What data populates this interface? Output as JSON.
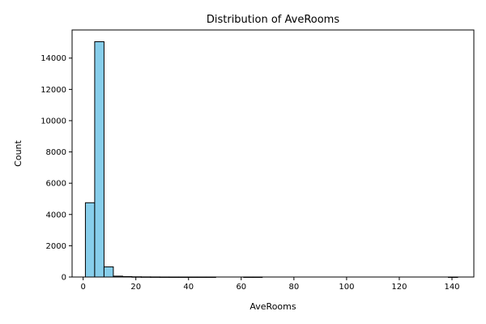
{
  "chart_data": {
    "type": "bar",
    "title": "Distribution of AveRooms",
    "xlabel": "AveRooms",
    "ylabel": "Count",
    "xlim": [
      -4.2,
      148.3
    ],
    "ylim": [
      0,
      15800
    ],
    "xticks": [
      0,
      20,
      40,
      60,
      80,
      100,
      120,
      140
    ],
    "yticks": [
      0,
      2000,
      4000,
      6000,
      8000,
      10000,
      12000,
      14000
    ],
    "bin_edges": [
      0.85,
      4.38,
      7.92,
      11.45,
      14.98,
      18.51,
      22.05,
      25.58,
      29.11,
      32.64,
      36.18,
      39.71,
      43.24,
      46.77,
      50.31,
      53.84,
      57.37,
      60.9,
      64.44,
      67.97,
      71.5,
      75.03,
      78.57,
      82.1,
      85.63,
      89.16,
      92.7,
      96.23,
      99.76,
      103.29,
      106.83,
      110.36,
      113.89,
      117.42,
      120.96,
      124.49,
      128.02,
      131.55,
      135.09,
      138.62,
      142.15
    ],
    "counts": [
      4750,
      15050,
      650,
      55,
      28,
      14,
      8,
      5,
      2,
      1,
      1,
      1,
      1,
      1,
      0,
      0,
      0,
      1,
      1,
      0,
      0,
      0,
      0,
      0,
      0,
      0,
      0,
      0,
      0,
      0,
      0,
      0,
      0,
      0,
      0,
      0,
      0,
      0,
      0,
      1
    ],
    "bar_color": "#87ceeb",
    "edge_color": "#000000",
    "grid": false,
    "legend": "none"
  }
}
